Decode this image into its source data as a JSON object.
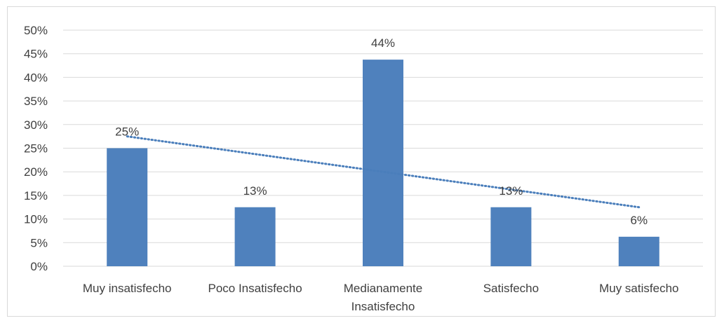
{
  "chart_data": {
    "type": "bar",
    "title": "",
    "xlabel": "",
    "ylabel": "",
    "categories": [
      "Muy insatisfecho",
      "Poco Insatisfecho",
      "Medianamente Insatisfecho",
      "Satisfecho",
      "Muy satisfecho"
    ],
    "category_lines": [
      [
        "Muy insatisfecho"
      ],
      [
        "Poco Insatisfecho"
      ],
      [
        "Medianamente",
        "Insatisfecho"
      ],
      [
        "Satisfecho"
      ],
      [
        "Muy satisfecho"
      ]
    ],
    "values": [
      25,
      12.5,
      43.75,
      12.5,
      6.25
    ],
    "data_labels": [
      "25%",
      "13%",
      "44%",
      "13%",
      "6%"
    ],
    "ylim": [
      0,
      50
    ],
    "yticks": [
      0,
      5,
      10,
      15,
      20,
      25,
      30,
      35,
      40,
      45,
      50
    ],
    "ytick_labels": [
      "0%",
      "5%",
      "10%",
      "15%",
      "20%",
      "25%",
      "30%",
      "35%",
      "40%",
      "45%",
      "50%"
    ],
    "trendline": {
      "type": "linear",
      "style": "dotted"
    },
    "grid": true,
    "legend": "none",
    "colors": {
      "bar": "#4f81bd",
      "trendline": "#4a7ebb",
      "grid": "#d9d9d9",
      "text": "#404040"
    }
  }
}
